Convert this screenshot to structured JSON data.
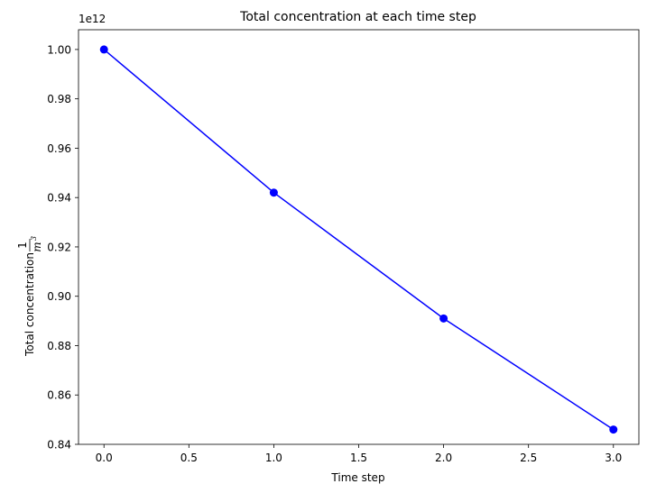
{
  "chart_data": {
    "type": "line",
    "title": "Total concentration at each time step",
    "xlabel": "Time step",
    "ylabel": {
      "text": "Total concentration",
      "unit_numerator": "1",
      "unit_denominator_base": "m",
      "unit_denominator_exponent": "3"
    },
    "y_offset_label": "1e12",
    "xlim": [
      -0.15,
      3.15
    ],
    "ylim": [
      0.84,
      1.008
    ],
    "x_ticks": [
      0.0,
      0.5,
      1.0,
      1.5,
      2.0,
      2.5,
      3.0
    ],
    "x_tick_labels": [
      "0.0",
      "0.5",
      "1.0",
      "1.5",
      "2.0",
      "2.5",
      "3.0"
    ],
    "y_ticks": [
      0.84,
      0.86,
      0.88,
      0.9,
      0.92,
      0.94,
      0.96,
      0.98,
      1.0
    ],
    "y_tick_labels": [
      "0.84",
      "0.86",
      "0.88",
      "0.90",
      "0.92",
      "0.94",
      "0.96",
      "0.98",
      "1.00"
    ],
    "grid": false,
    "series": [
      {
        "x": [
          0,
          1,
          2,
          3
        ],
        "values": [
          1.0,
          0.942,
          0.891,
          0.846
        ],
        "color": "#0000ff",
        "marker": "circle"
      }
    ]
  }
}
